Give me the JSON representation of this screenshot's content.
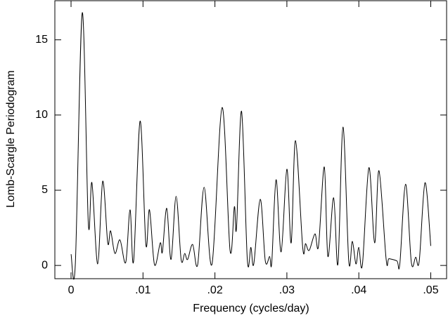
{
  "chart_data": {
    "type": "line",
    "x_label": "Frequency (cycles/day)",
    "y_label": "Lomb-Scargle Periodogram",
    "x": [
      0,
      0.0006,
      0.00156,
      0.0024,
      0.0029,
      0.0037,
      0.0044,
      0.0051,
      0.0055,
      0.0061,
      0.0068,
      0.0076,
      0.0082,
      0.0087,
      0.0096,
      0.0104,
      0.0109,
      0.0116,
      0.0124,
      0.0127,
      0.0133,
      0.0139,
      0.0146,
      0.0153,
      0.0158,
      0.0162,
      0.0169,
      0.0176,
      0.0185,
      0.0196,
      0.021,
      0.0221,
      0.0227,
      0.023,
      0.0237,
      0.0245,
      0.025,
      0.0254,
      0.0263,
      0.027,
      0.0276,
      0.0279,
      0.0285,
      0.0292,
      0.03,
      0.0306,
      0.0312,
      0.0322,
      0.0326,
      0.0331,
      0.0339,
      0.0344,
      0.0352,
      0.0357,
      0.0365,
      0.0371,
      0.0378,
      0.0386,
      0.0391,
      0.0396,
      0.04,
      0.0405,
      0.0414,
      0.0422,
      0.0428,
      0.0438,
      0.0442,
      0.0453,
      0.0457,
      0.0465,
      0.0473,
      0.0479,
      0.0484,
      0.0492,
      0.05
    ],
    "series": [
      {
        "color": "#000000",
        "values": [
          0.75,
          0.15,
          16.8,
          2.8,
          5.5,
          0.1,
          5.6,
          1.5,
          2.3,
          0.8,
          1.7,
          0.2,
          3.7,
          0.3,
          9.6,
          1.4,
          3.7,
          0.05,
          1.5,
          0.9,
          3.8,
          0.4,
          4.6,
          0.4,
          0.8,
          0.4,
          1.4,
          0.05,
          5.2,
          0.1,
          10.5,
          1.0,
          3.9,
          2.5,
          10.25,
          0.4,
          1.2,
          0.1,
          4.4,
          0.3,
          0.6,
          0.2,
          5.7,
          0.9,
          6.4,
          1.5,
          8.3,
          1.2,
          1.45,
          1.0,
          2.1,
          1.3,
          6.55,
          0.6,
          4.5,
          0.1,
          9.2,
          0.3,
          1.6,
          0.1,
          1.2,
          0.05,
          6.5,
          1.5,
          6.3,
          0.4,
          0.45,
          0.3,
          0.1,
          5.4,
          0.2,
          0.55,
          0.3,
          5.5,
          1.3
        ]
      }
    ],
    "xlim": [
      -0.00225,
      0.0522
    ],
    "ylim": [
      -0.88,
      17.6
    ],
    "xticks": [
      0,
      {
        "value": 0.01,
        "label": ".01"
      },
      {
        "value": 0.02,
        "label": ".02"
      },
      {
        "value": 0.03,
        "label": ".03"
      },
      {
        "value": 0.04,
        "label": ".04"
      },
      {
        "value": 0.05,
        "label": ".05"
      }
    ],
    "yticks": [
      0,
      5,
      10,
      15
    ]
  }
}
